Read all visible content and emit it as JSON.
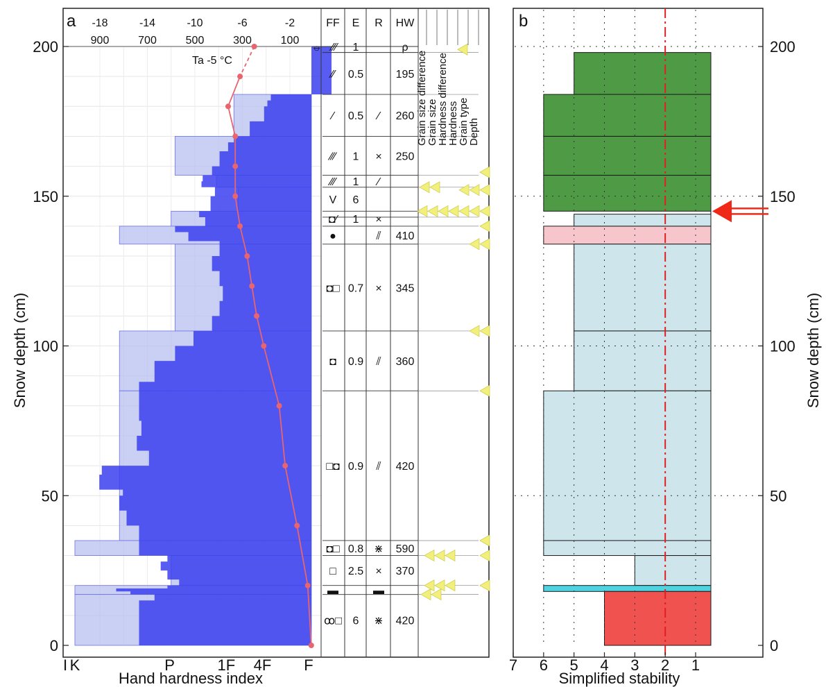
{
  "chart_data": [
    {
      "panel_letter": "a",
      "type": "bar",
      "ylabel": "Snow depth (cm)",
      "xlabel": "Hand hardness index",
      "ylim": [
        0,
        205
      ],
      "y_ticks": [
        "0",
        "50",
        "100",
        "150",
        "200"
      ],
      "hardness_ticks": [
        "I",
        "K",
        "P",
        "1F",
        "4F",
        "F"
      ],
      "temp_ticks": [
        "-18",
        "-14",
        "-10",
        "-6",
        "-2"
      ],
      "temp_ticks2": [
        "900",
        "700",
        "500",
        "300",
        "100"
      ],
      "temp_label": "Ta  -5 °C",
      "table_headers": [
        "FF",
        "E",
        "R",
        "HW"
      ],
      "table_units_row": {
        "FF": "⦵",
        "E": "1",
        "HW": "ρ"
      },
      "flag_headers": [
        "Grain size difference",
        "Grain size",
        "Hardness difference",
        "Hardness",
        "Grain type",
        "Depth"
      ],
      "layers": [
        {
          "top": 198,
          "bottom": 184,
          "FF": "⁄⁄",
          "E": "0.5",
          "R": "",
          "HW": "195"
        },
        {
          "top": 184,
          "bottom": 170,
          "FF": "⁄",
          "E": "0.5",
          "R": "⁄",
          "HW": "260"
        },
        {
          "top": 170,
          "bottom": 157,
          "FF": "⁄⁄⁄",
          "E": "1",
          "R": "×",
          "HW": "250"
        },
        {
          "top": 157,
          "bottom": 153,
          "FF": "⁄⁄⁄",
          "E": "1",
          "R": "⁄",
          "HW": ""
        },
        {
          "top": 153,
          "bottom": 145,
          "FF": "V",
          "E": "6",
          "R": "",
          "HW": ""
        },
        {
          "top": 145,
          "bottom": 140,
          "FF": "◘⁄",
          "E": "1",
          "R": "×",
          "HW": ""
        },
        {
          "top": 140,
          "bottom": 134,
          "FF": "●",
          "E": "",
          "R": "⫽",
          "HW": "410"
        },
        {
          "top": 134,
          "bottom": 105,
          "FF": "◘□",
          "E": "0.7",
          "R": "×",
          "HW": "345"
        },
        {
          "top": 105,
          "bottom": 85,
          "FF": "◘",
          "E": "0.9",
          "R": "⫽",
          "HW": "360"
        },
        {
          "top": 85,
          "bottom": 35,
          "FF": "□◘",
          "E": "0.9",
          "R": "⫽",
          "HW": "420"
        },
        {
          "top": 35,
          "bottom": 30,
          "FF": "◘□",
          "E": "0.8",
          "R": "⋇",
          "HW": "590"
        },
        {
          "top": 30,
          "bottom": 20,
          "FF": "□",
          "E": "2.5",
          "R": "×",
          "HW": "370"
        },
        {
          "top": 20,
          "bottom": 17,
          "FF": "▬",
          "E": "",
          "R": "▬",
          "HW": ""
        },
        {
          "top": 17,
          "bottom": 0,
          "FF": "ꝏ□",
          "E": "6",
          "R": "⋇",
          "HW": "420"
        }
      ],
      "layer_boundaries": [
        198,
        184,
        170,
        157,
        153,
        145,
        143,
        140,
        134,
        105,
        85,
        35,
        30,
        20,
        17
      ],
      "temperature_profile": {
        "depth": [
          200,
          190,
          180,
          170,
          160,
          150,
          140,
          130,
          120,
          110,
          100,
          80,
          60,
          40,
          20,
          0
        ],
        "temp_c": [
          -5,
          -6.2,
          -7.2,
          -6.6,
          -6.6,
          -6.6,
          -6.2,
          -5.6,
          -5.2,
          -4.8,
          -4.2,
          -2.9,
          -2.4,
          -1.4,
          -0.5,
          -0.2
        ]
      },
      "hardness_profile_resistance": {
        "depth": [
          200,
          198,
          184,
          182,
          180,
          175,
          170,
          168,
          165,
          160,
          157,
          155,
          153,
          150,
          145,
          143,
          140,
          138,
          135,
          130,
          125,
          120,
          115,
          110,
          105,
          100,
          95,
          88,
          80,
          75,
          70,
          65,
          60,
          57,
          52,
          50,
          45,
          40,
          35,
          30,
          28,
          25,
          22,
          20,
          19,
          18,
          17,
          15,
          10,
          5,
          0
        ],
        "index": [
          0.7,
          0.7,
          1.8,
          1.9,
          2.0,
          2.5,
          3.2,
          3.5,
          4.0,
          4.5,
          5.2,
          5.3,
          4.3,
          4.6,
          5.5,
          5.0,
          8.0,
          6.5,
          4.0,
          4.5,
          4.0,
          3.8,
          4.0,
          4.5,
          6.0,
          8.0,
          11.0,
          14.0,
          14.0,
          13.5,
          14.5,
          12.0,
          25.0,
          26.0,
          18.0,
          19.0,
          17.0,
          14.0,
          14.0,
          9.0,
          10.0,
          9.0,
          7.5,
          9.0,
          20.0,
          16.0,
          11.0,
          14.0,
          14.0,
          14.0,
          14.0
        ]
      },
      "hardness_layers_hand": [
        {
          "top": 198,
          "bottom": 184,
          "index": 0.7
        },
        {
          "top": 184,
          "bottom": 170,
          "index": 3.2
        },
        {
          "top": 170,
          "bottom": 157,
          "index": 8.0
        },
        {
          "top": 157,
          "bottom": 153,
          "index": 4.2
        },
        {
          "top": 153,
          "bottom": 145,
          "index": 3.0
        },
        {
          "top": 145,
          "bottom": 140,
          "index": 8.5
        },
        {
          "top": 140,
          "bottom": 134,
          "index": 19.0
        },
        {
          "top": 134,
          "bottom": 105,
          "index": 8.0
        },
        {
          "top": 105,
          "bottom": 85,
          "index": 19.0
        },
        {
          "top": 85,
          "bottom": 35,
          "index": 19.0
        },
        {
          "top": 35,
          "bottom": 30,
          "index": 38.0
        },
        {
          "top": 30,
          "bottom": 20,
          "index": 8.5
        },
        {
          "top": 20,
          "bottom": 17,
          "index": 38.0
        },
        {
          "top": 17,
          "bottom": 0,
          "index": 38.0
        }
      ],
      "flags": [
        {
          "depth": 199,
          "count": 1
        },
        {
          "depth": 158,
          "count": 1
        },
        {
          "depth": 153,
          "count": 2
        },
        {
          "depth": 153,
          "count": 3
        },
        {
          "depth": 145,
          "count": 7
        },
        {
          "depth": 140,
          "count": 1
        },
        {
          "depth": 134,
          "count": 2
        },
        {
          "depth": 105,
          "count": 2
        },
        {
          "depth": 85,
          "count": 1
        },
        {
          "depth": 35,
          "count": 1
        },
        {
          "depth": 30,
          "count": 3
        },
        {
          "depth": 30,
          "count": 1
        },
        {
          "depth": 20,
          "count": 3
        },
        {
          "depth": 20,
          "count": 1
        },
        {
          "depth": 17,
          "count": 2
        }
      ],
      "colors": {
        "hand_hardness": "#b8bff0",
        "resistance": "#3b3fef",
        "temperature": "#e8646e",
        "flag": "#f2f07a"
      }
    },
    {
      "panel_letter": "b",
      "type": "bar",
      "xlabel": "Simplified stability",
      "ylabel": "Snow depth (cm)",
      "xlim": [
        7,
        0
      ],
      "x_ticks": [
        "7",
        "6",
        "5",
        "4",
        "3",
        "2",
        "1"
      ],
      "y_ticks": [
        "0",
        "50",
        "100",
        "150",
        "200"
      ],
      "ylim": [
        0,
        205
      ],
      "threshold": 2,
      "layers": [
        {
          "top": 198,
          "bottom": 184,
          "stability": 5,
          "color": "#4f9a45"
        },
        {
          "top": 184,
          "bottom": 170,
          "stability": 6,
          "color": "#4f9a45"
        },
        {
          "top": 170,
          "bottom": 157,
          "stability": 6,
          "color": "#4f9a45"
        },
        {
          "top": 157,
          "bottom": 145,
          "stability": 6,
          "color": "#4f9a45"
        },
        {
          "top": 145,
          "bottom": 144,
          "stability": 0.5,
          "color": "#8040c0"
        },
        {
          "top": 140,
          "bottom": 134,
          "stability": 6,
          "color": "#f7c5cc"
        },
        {
          "top": 144,
          "bottom": 140,
          "stability": 5,
          "color": "#cfe5ec"
        },
        {
          "top": 134,
          "bottom": 105,
          "stability": 5,
          "color": "#cfe5ec"
        },
        {
          "top": 105,
          "bottom": 85,
          "stability": 5,
          "color": "#cfe5ec"
        },
        {
          "top": 85,
          "bottom": 35,
          "stability": 6,
          "color": "#cfe5ec"
        },
        {
          "top": 35,
          "bottom": 30,
          "stability": 6,
          "color": "#cfe5ec"
        },
        {
          "top": 30,
          "bottom": 20,
          "stability": 3,
          "color": "#cfe5ec"
        },
        {
          "top": 20,
          "bottom": 18,
          "stability": 6,
          "color": "#4ed4e0"
        },
        {
          "top": 18,
          "bottom": 0,
          "stability": 4,
          "color": "#f0524f"
        }
      ],
      "arrow_depth": 145,
      "colors": {
        "threshold": "#e02020",
        "arrow": "#f02818"
      }
    }
  ]
}
